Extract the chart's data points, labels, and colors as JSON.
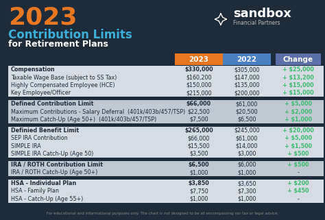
{
  "title_year": "2023",
  "title_line1": "Contribution Limits",
  "title_line2": "for Retirement Plans",
  "background_color": "#1e2b3a",
  "header_2023_color": "#e87722",
  "header_2022_color": "#4a7fc1",
  "header_change_color": "#5b6fa8",
  "table_bg_light": "#d6dce4",
  "table_bg_dark": "#c0c8d2",
  "change_color": "#3dba6e",
  "text_dark": "#1e2b3a",
  "text_white": "#ffffff",
  "col_headers": [
    "2023",
    "2022",
    "Change"
  ],
  "groups": [
    {
      "rows": [
        {
          "label": "Compensation",
          "v2023": "$330,000",
          "v2022": "$305,000",
          "change": "+ $25,000"
        },
        {
          "label": "Taxable Wage Base (subject to SS Tax)",
          "v2023": "$160,200",
          "v2022": "$147,000",
          "change": "+ $13,200"
        },
        {
          "label": "Highly Compensated Employee (HCE)",
          "v2023": "$150,000",
          "v2022": "$135,000",
          "change": "+ $15,000"
        },
        {
          "label": "Key Employee/Officer",
          "v2023": "$215,000",
          "v2022": "$200,000",
          "change": "+ $15,000"
        }
      ]
    },
    {
      "rows": [
        {
          "label": "Defined Contribution Limit",
          "v2023": "$66,000",
          "v2022": "$61,000",
          "change": "+ $5,000"
        },
        {
          "label": "Maximum Contributions - Salary Deferral  (401k/403b/457/TSP)",
          "v2023": "$22,500",
          "v2022": "$20,500",
          "change": "+ $2,000"
        },
        {
          "label": "Maximum Catch-Up (Age 50+)  (401k/403b/457/TSP)",
          "v2023": "$7,500",
          "v2022": "$6,500",
          "change": "+ $1,000"
        }
      ]
    },
    {
      "rows": [
        {
          "label": "Definied Benefit Limit",
          "v2023": "$265,000",
          "v2022": "$245,000",
          "change": "+ $20,000"
        },
        {
          "label": "SEP IRA Contribution",
          "v2023": "$66,000",
          "v2022": "$61,000",
          "change": "+ $5,000"
        },
        {
          "label": "SIMPLE IRA",
          "v2023": "$15,500",
          "v2022": "$14,000",
          "change": "+ $1,500"
        },
        {
          "label": "SIMPLE IRA Catch-Up (Age 50)",
          "v2023": "$3,500",
          "v2022": "$3,000",
          "change": "+ $500"
        }
      ]
    },
    {
      "rows": [
        {
          "label": "IRA / ROTH Contribution Limit",
          "v2023": "$6,500",
          "v2022": "$6,000",
          "change": "+ $500"
        },
        {
          "label": "IRA / ROTH Catch-Up (Age 50+)",
          "v2023": "$1,000",
          "v2022": "$1,000",
          "change": "-"
        }
      ]
    },
    {
      "rows": [
        {
          "label": "HSA - Individual Plan",
          "v2023": "$3,850",
          "v2022": "$3,650",
          "change": "+ $200"
        },
        {
          "label": "HSA - Family Plan",
          "v2023": "$7,750",
          "v2022": "$7,300",
          "change": "+ $450"
        },
        {
          "label": "HSA - Catch-Up (Age 55+)",
          "v2023": "$1,000",
          "v2022": "$1,000",
          "change": "-"
        }
      ]
    }
  ],
  "footer": "For educational and informational purposes only. The chart is not designed to be all encompassing nor tax or legal advice.",
  "logo_text": "sandbox",
  "logo_sub": "Financial Partners",
  "title_color": "#e87722",
  "contribution_color": "#3db0d8",
  "footer_color": "#888888"
}
